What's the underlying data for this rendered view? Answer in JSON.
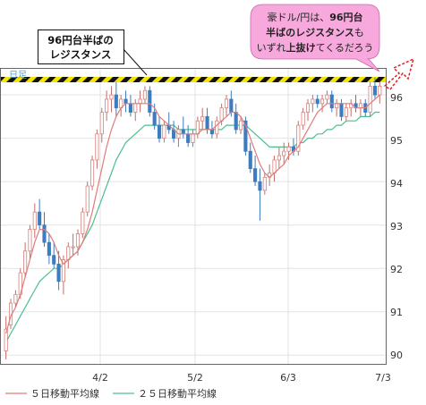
{
  "chart_data": {
    "type": "candlestick",
    "period_label": "日足",
    "ylim": [
      89.8,
      96.6
    ],
    "y_ticks": [
      "90",
      "91",
      "92",
      "93",
      "94",
      "95",
      "96"
    ],
    "x_ticks": [
      "4/2",
      "5/2",
      "6/3",
      "7/3"
    ],
    "resistance_level": 96.3,
    "legend": [
      "５日移動平均線",
      "２５日移動平均線"
    ],
    "colors": {
      "up": "#e8908a",
      "down": "#3d7cbf",
      "ma5": "#e07b79",
      "ma25": "#4cbf8e",
      "resistance_yellow": "#f5e400",
      "resistance_black": "#111111"
    },
    "candles": [
      {
        "o": 90.1,
        "h": 90.9,
        "l": 89.9,
        "c": 90.6
      },
      {
        "o": 90.7,
        "h": 91.3,
        "l": 90.6,
        "c": 91.2
      },
      {
        "o": 91.2,
        "h": 91.5,
        "l": 91.1,
        "c": 91.4
      },
      {
        "o": 91.4,
        "h": 92.0,
        "l": 91.3,
        "c": 91.9
      },
      {
        "o": 91.9,
        "h": 92.6,
        "l": 91.8,
        "c": 92.4
      },
      {
        "o": 92.4,
        "h": 93.0,
        "l": 92.2,
        "c": 92.9
      },
      {
        "o": 92.9,
        "h": 93.5,
        "l": 92.7,
        "c": 93.3
      },
      {
        "o": 93.3,
        "h": 93.6,
        "l": 92.9,
        "c": 93.0
      },
      {
        "o": 93.0,
        "h": 93.3,
        "l": 92.5,
        "c": 92.6
      },
      {
        "o": 92.6,
        "h": 92.8,
        "l": 92.1,
        "c": 92.3
      },
      {
        "o": 92.3,
        "h": 92.6,
        "l": 92.0,
        "c": 92.1
      },
      {
        "o": 92.1,
        "h": 92.4,
        "l": 91.5,
        "c": 91.7
      },
      {
        "o": 91.7,
        "h": 92.3,
        "l": 91.4,
        "c": 92.2
      },
      {
        "o": 92.2,
        "h": 92.6,
        "l": 92.0,
        "c": 92.5
      },
      {
        "o": 92.5,
        "h": 92.8,
        "l": 92.3,
        "c": 92.5
      },
      {
        "o": 92.5,
        "h": 92.9,
        "l": 92.3,
        "c": 92.8
      },
      {
        "o": 92.8,
        "h": 93.4,
        "l": 92.7,
        "c": 93.3
      },
      {
        "o": 93.3,
        "h": 94.0,
        "l": 93.2,
        "c": 93.9
      },
      {
        "o": 93.9,
        "h": 94.6,
        "l": 93.8,
        "c": 94.5
      },
      {
        "o": 94.5,
        "h": 95.2,
        "l": 94.3,
        "c": 95.1
      },
      {
        "o": 95.1,
        "h": 95.7,
        "l": 94.9,
        "c": 95.6
      },
      {
        "o": 95.6,
        "h": 96.1,
        "l": 95.4,
        "c": 95.9
      },
      {
        "o": 95.9,
        "h": 96.2,
        "l": 95.6,
        "c": 96.0
      },
      {
        "o": 96.0,
        "h": 96.3,
        "l": 95.5,
        "c": 95.7
      },
      {
        "o": 95.7,
        "h": 96.0,
        "l": 95.5,
        "c": 95.9
      },
      {
        "o": 95.9,
        "h": 96.1,
        "l": 95.6,
        "c": 95.8
      },
      {
        "o": 95.8,
        "h": 96.0,
        "l": 95.5,
        "c": 95.6
      },
      {
        "o": 95.6,
        "h": 95.9,
        "l": 95.4,
        "c": 95.8
      },
      {
        "o": 95.8,
        "h": 96.1,
        "l": 95.6,
        "c": 95.9
      },
      {
        "o": 95.9,
        "h": 96.2,
        "l": 95.8,
        "c": 96.1
      },
      {
        "o": 96.1,
        "h": 96.2,
        "l": 95.5,
        "c": 95.6
      },
      {
        "o": 95.6,
        "h": 95.8,
        "l": 95.2,
        "c": 95.3
      },
      {
        "o": 95.3,
        "h": 95.5,
        "l": 94.9,
        "c": 95.0
      },
      {
        "o": 95.0,
        "h": 95.4,
        "l": 94.9,
        "c": 95.3
      },
      {
        "o": 95.3,
        "h": 95.6,
        "l": 95.1,
        "c": 95.2
      },
      {
        "o": 95.2,
        "h": 95.4,
        "l": 94.9,
        "c": 95.0
      },
      {
        "o": 95.0,
        "h": 95.3,
        "l": 94.8,
        "c": 95.2
      },
      {
        "o": 95.2,
        "h": 95.5,
        "l": 95.0,
        "c": 95.1
      },
      {
        "o": 95.1,
        "h": 95.3,
        "l": 94.8,
        "c": 94.9
      },
      {
        "o": 94.9,
        "h": 95.2,
        "l": 94.8,
        "c": 95.1
      },
      {
        "o": 95.1,
        "h": 95.5,
        "l": 95.0,
        "c": 95.4
      },
      {
        "o": 95.4,
        "h": 95.7,
        "l": 95.2,
        "c": 95.5
      },
      {
        "o": 95.5,
        "h": 95.7,
        "l": 95.1,
        "c": 95.2
      },
      {
        "o": 95.2,
        "h": 95.4,
        "l": 95.0,
        "c": 95.1
      },
      {
        "o": 95.1,
        "h": 95.5,
        "l": 95.0,
        "c": 95.4
      },
      {
        "o": 95.4,
        "h": 95.8,
        "l": 95.3,
        "c": 95.7
      },
      {
        "o": 95.7,
        "h": 96.0,
        "l": 95.5,
        "c": 95.9
      },
      {
        "o": 95.9,
        "h": 96.1,
        "l": 95.5,
        "c": 95.6
      },
      {
        "o": 95.6,
        "h": 95.8,
        "l": 95.1,
        "c": 95.2
      },
      {
        "o": 95.2,
        "h": 95.5,
        "l": 95.1,
        "c": 95.4
      },
      {
        "o": 95.4,
        "h": 95.5,
        "l": 94.6,
        "c": 94.7
      },
      {
        "o": 94.7,
        "h": 94.9,
        "l": 94.2,
        "c": 94.3
      },
      {
        "o": 94.3,
        "h": 94.6,
        "l": 93.9,
        "c": 94.0
      },
      {
        "o": 94.0,
        "h": 94.3,
        "l": 93.1,
        "c": 93.8
      },
      {
        "o": 93.8,
        "h": 94.2,
        "l": 93.7,
        "c": 94.1
      },
      {
        "o": 94.1,
        "h": 94.4,
        "l": 93.9,
        "c": 94.2
      },
      {
        "o": 94.2,
        "h": 94.6,
        "l": 94.0,
        "c": 94.5
      },
      {
        "o": 94.5,
        "h": 94.8,
        "l": 94.3,
        "c": 94.6
      },
      {
        "o": 94.6,
        "h": 94.9,
        "l": 94.4,
        "c": 94.7
      },
      {
        "o": 94.7,
        "h": 94.9,
        "l": 94.5,
        "c": 94.8
      },
      {
        "o": 94.8,
        "h": 95.0,
        "l": 94.6,
        "c": 94.7
      },
      {
        "o": 94.7,
        "h": 95.4,
        "l": 94.6,
        "c": 95.3
      },
      {
        "o": 95.3,
        "h": 95.7,
        "l": 95.2,
        "c": 95.6
      },
      {
        "o": 95.6,
        "h": 95.9,
        "l": 95.4,
        "c": 95.8
      },
      {
        "o": 95.8,
        "h": 96.0,
        "l": 95.6,
        "c": 95.9
      },
      {
        "o": 95.9,
        "h": 96.0,
        "l": 95.7,
        "c": 95.8
      },
      {
        "o": 95.8,
        "h": 96.0,
        "l": 95.6,
        "c": 95.9
      },
      {
        "o": 95.9,
        "h": 96.1,
        "l": 95.8,
        "c": 96.0
      },
      {
        "o": 96.0,
        "h": 96.1,
        "l": 95.6,
        "c": 95.7
      },
      {
        "o": 95.7,
        "h": 95.9,
        "l": 95.5,
        "c": 95.8
      },
      {
        "o": 95.8,
        "h": 95.9,
        "l": 95.4,
        "c": 95.5
      },
      {
        "o": 95.5,
        "h": 95.8,
        "l": 95.4,
        "c": 95.7
      },
      {
        "o": 95.7,
        "h": 95.9,
        "l": 95.5,
        "c": 95.8
      },
      {
        "o": 95.8,
        "h": 96.0,
        "l": 95.6,
        "c": 95.7
      },
      {
        "o": 95.7,
        "h": 95.9,
        "l": 95.5,
        "c": 95.8
      },
      {
        "o": 95.8,
        "h": 95.9,
        "l": 95.5,
        "c": 95.6
      },
      {
        "o": 95.6,
        "h": 96.3,
        "l": 95.5,
        "c": 96.2
      },
      {
        "o": 96.2,
        "h": 96.4,
        "l": 95.9,
        "c": 96.0
      },
      {
        "o": 96.0,
        "h": 96.3,
        "l": 95.8,
        "c": 96.2
      }
    ],
    "ma5": [
      90.5,
      90.9,
      91.1,
      91.4,
      91.8,
      92.2,
      92.6,
      92.9,
      92.9,
      92.8,
      92.6,
      92.3,
      92.1,
      92.2,
      92.3,
      92.4,
      92.6,
      92.9,
      93.3,
      93.8,
      94.3,
      94.8,
      95.2,
      95.5,
      95.7,
      95.8,
      95.8,
      95.8,
      95.8,
      95.8,
      95.8,
      95.7,
      95.5,
      95.4,
      95.3,
      95.2,
      95.1,
      95.1,
      95.1,
      95.1,
      95.1,
      95.2,
      95.2,
      95.2,
      95.3,
      95.4,
      95.5,
      95.6,
      95.6,
      95.5,
      95.3,
      95.0,
      94.7,
      94.4,
      94.2,
      94.1,
      94.2,
      94.3,
      94.4,
      94.6,
      94.7,
      94.8,
      95.0,
      95.2,
      95.4,
      95.6,
      95.7,
      95.8,
      95.8,
      95.8,
      95.8,
      95.8,
      95.8,
      95.7,
      95.7,
      95.7,
      95.8,
      95.9,
      96.0
    ],
    "ma25": [
      90.3,
      90.5,
      90.7,
      90.9,
      91.1,
      91.3,
      91.5,
      91.7,
      91.8,
      91.9,
      92.0,
      92.0,
      92.1,
      92.2,
      92.3,
      92.4,
      92.6,
      92.8,
      93.0,
      93.3,
      93.6,
      93.9,
      94.2,
      94.5,
      94.7,
      94.9,
      95.0,
      95.1,
      95.2,
      95.3,
      95.3,
      95.3,
      95.3,
      95.3,
      95.3,
      95.3,
      95.2,
      95.2,
      95.2,
      95.2,
      95.2,
      95.2,
      95.2,
      95.2,
      95.2,
      95.2,
      95.3,
      95.3,
      95.3,
      95.3,
      95.3,
      95.2,
      95.1,
      95.0,
      94.9,
      94.8,
      94.8,
      94.8,
      94.8,
      94.8,
      94.8,
      94.9,
      94.9,
      95.0,
      95.0,
      95.1,
      95.1,
      95.2,
      95.2,
      95.3,
      95.3,
      95.4,
      95.4,
      95.4,
      95.5,
      95.5,
      95.5,
      95.6,
      95.6
    ]
  },
  "annotations": {
    "resistance_label_line1": "96円台半ばの",
    "resistance_label_line2": "レジスタンス",
    "callout_line1_a": "豪ドル/円は、",
    "callout_line1_b": "96円台",
    "callout_line2_a": "半ばのレジスタンス",
    "callout_line2_b": "も",
    "callout_line3_a": "いずれ",
    "callout_line3_b": "上抜け",
    "callout_line3_c": "てくるだろう"
  }
}
